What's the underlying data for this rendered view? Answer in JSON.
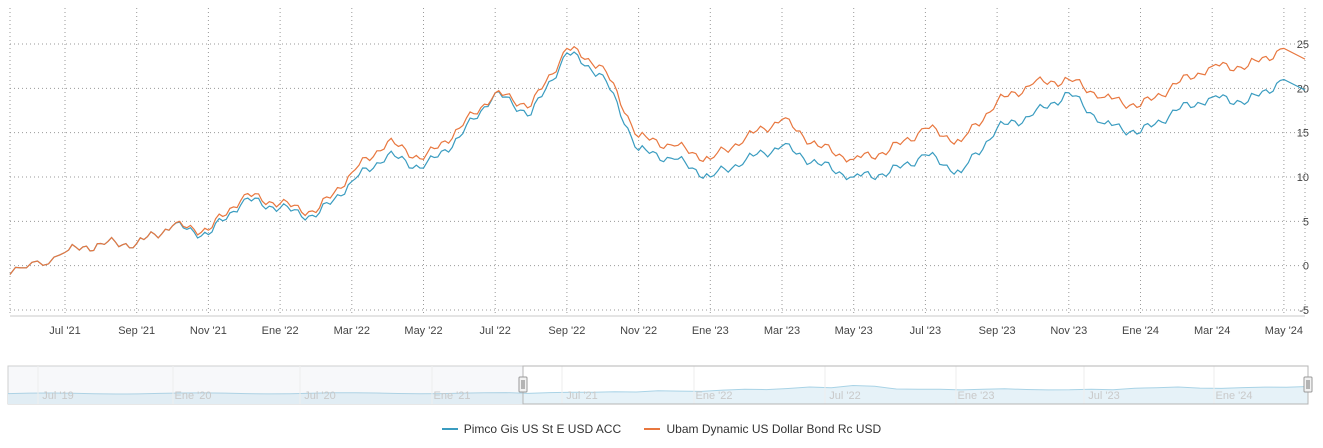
{
  "chart_data": {
    "type": "line",
    "title": "",
    "xlabel": "",
    "ylabel": "",
    "ylim": [
      -5,
      25
    ],
    "yticks": [
      -5,
      0,
      5,
      10,
      15,
      20,
      25
    ],
    "y_axis_side": "right",
    "grid": "dotted",
    "legend_position": "bottom-center",
    "x_tick_labels": [
      "Jul '21",
      "Sep '21",
      "Nov '21",
      "Ene '22",
      "Mar '22",
      "May '22",
      "Jul '22",
      "Sep '22",
      "Nov '22",
      "Ene '23",
      "Mar '23",
      "May '23",
      "Jul '23",
      "Sep '23",
      "Nov '23",
      "Ene '24",
      "Mar '24",
      "May '24"
    ],
    "x": [
      "2021-06",
      "2021-07",
      "2021-08",
      "2021-09",
      "2021-10",
      "2021-11",
      "2021-12",
      "2022-01",
      "2022-02",
      "2022-03",
      "2022-04",
      "2022-05",
      "2022-06",
      "2022-07",
      "2022-08",
      "2022-09",
      "2022-10",
      "2022-11",
      "2022-12",
      "2023-01",
      "2023-02",
      "2023-03",
      "2023-04",
      "2023-05",
      "2023-06",
      "2023-07",
      "2023-08",
      "2023-09",
      "2023-10",
      "2023-11",
      "2023-12",
      "2024-01",
      "2024-02",
      "2024-03",
      "2024-04",
      "2024-05"
    ],
    "series": [
      {
        "name": "Pimco Gis US St E USD ACC",
        "color": "#3a9cc0",
        "values": [
          -1,
          1.5,
          2.5,
          2.5,
          4.5,
          3.5,
          7.5,
          6.5,
          5.5,
          9.5,
          12.5,
          11,
          14.5,
          19.5,
          17,
          24,
          21.5,
          13,
          12,
          10,
          12,
          13.5,
          11.5,
          10,
          10.5,
          12.5,
          10.5,
          15.5,
          17,
          19.5,
          16,
          15,
          17.5,
          19,
          18.5,
          21
        ]
      },
      {
        "name": "Ubam Dynamic US Dollar Bond Rc USD",
        "color": "#e8773f",
        "values": [
          -1,
          1.5,
          2.5,
          2.5,
          4.5,
          4,
          8,
          7,
          6,
          10.5,
          14,
          12,
          15.5,
          19.5,
          18,
          24.5,
          22.5,
          14.5,
          13.5,
          12,
          14.5,
          16.5,
          13.5,
          12,
          13,
          15.5,
          14,
          18.5,
          20.5,
          21,
          19,
          18,
          20.5,
          22.5,
          22.5,
          24.5
        ]
      }
    ],
    "navigator": {
      "tick_labels": [
        "Jul '19",
        "Ene '20",
        "Jul '20",
        "Ene '21",
        "Jul '21",
        "Ene '22",
        "Jul '22",
        "Ene '23",
        "Jul '23",
        "Ene '24"
      ]
    }
  }
}
